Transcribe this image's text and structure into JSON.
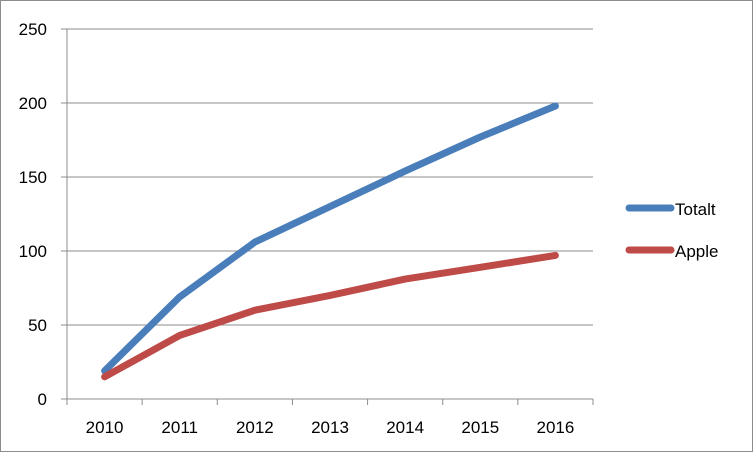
{
  "chart_data": {
    "type": "line",
    "title": "",
    "xlabel": "",
    "ylabel": "",
    "categories": [
      "2010",
      "2011",
      "2012",
      "2013",
      "2014",
      "2015",
      "2016"
    ],
    "ylim": [
      0,
      250
    ],
    "yticks": [
      0,
      50,
      100,
      150,
      200,
      250
    ],
    "grid": true,
    "legend_position": "right",
    "series": [
      {
        "name": "Totalt",
        "color": "#4a7ebb",
        "values": [
          19,
          69,
          106,
          130,
          154,
          177,
          198
        ]
      },
      {
        "name": "Apple",
        "color": "#be4b48",
        "values": [
          15,
          43,
          60,
          70,
          81,
          89,
          97
        ]
      }
    ]
  }
}
